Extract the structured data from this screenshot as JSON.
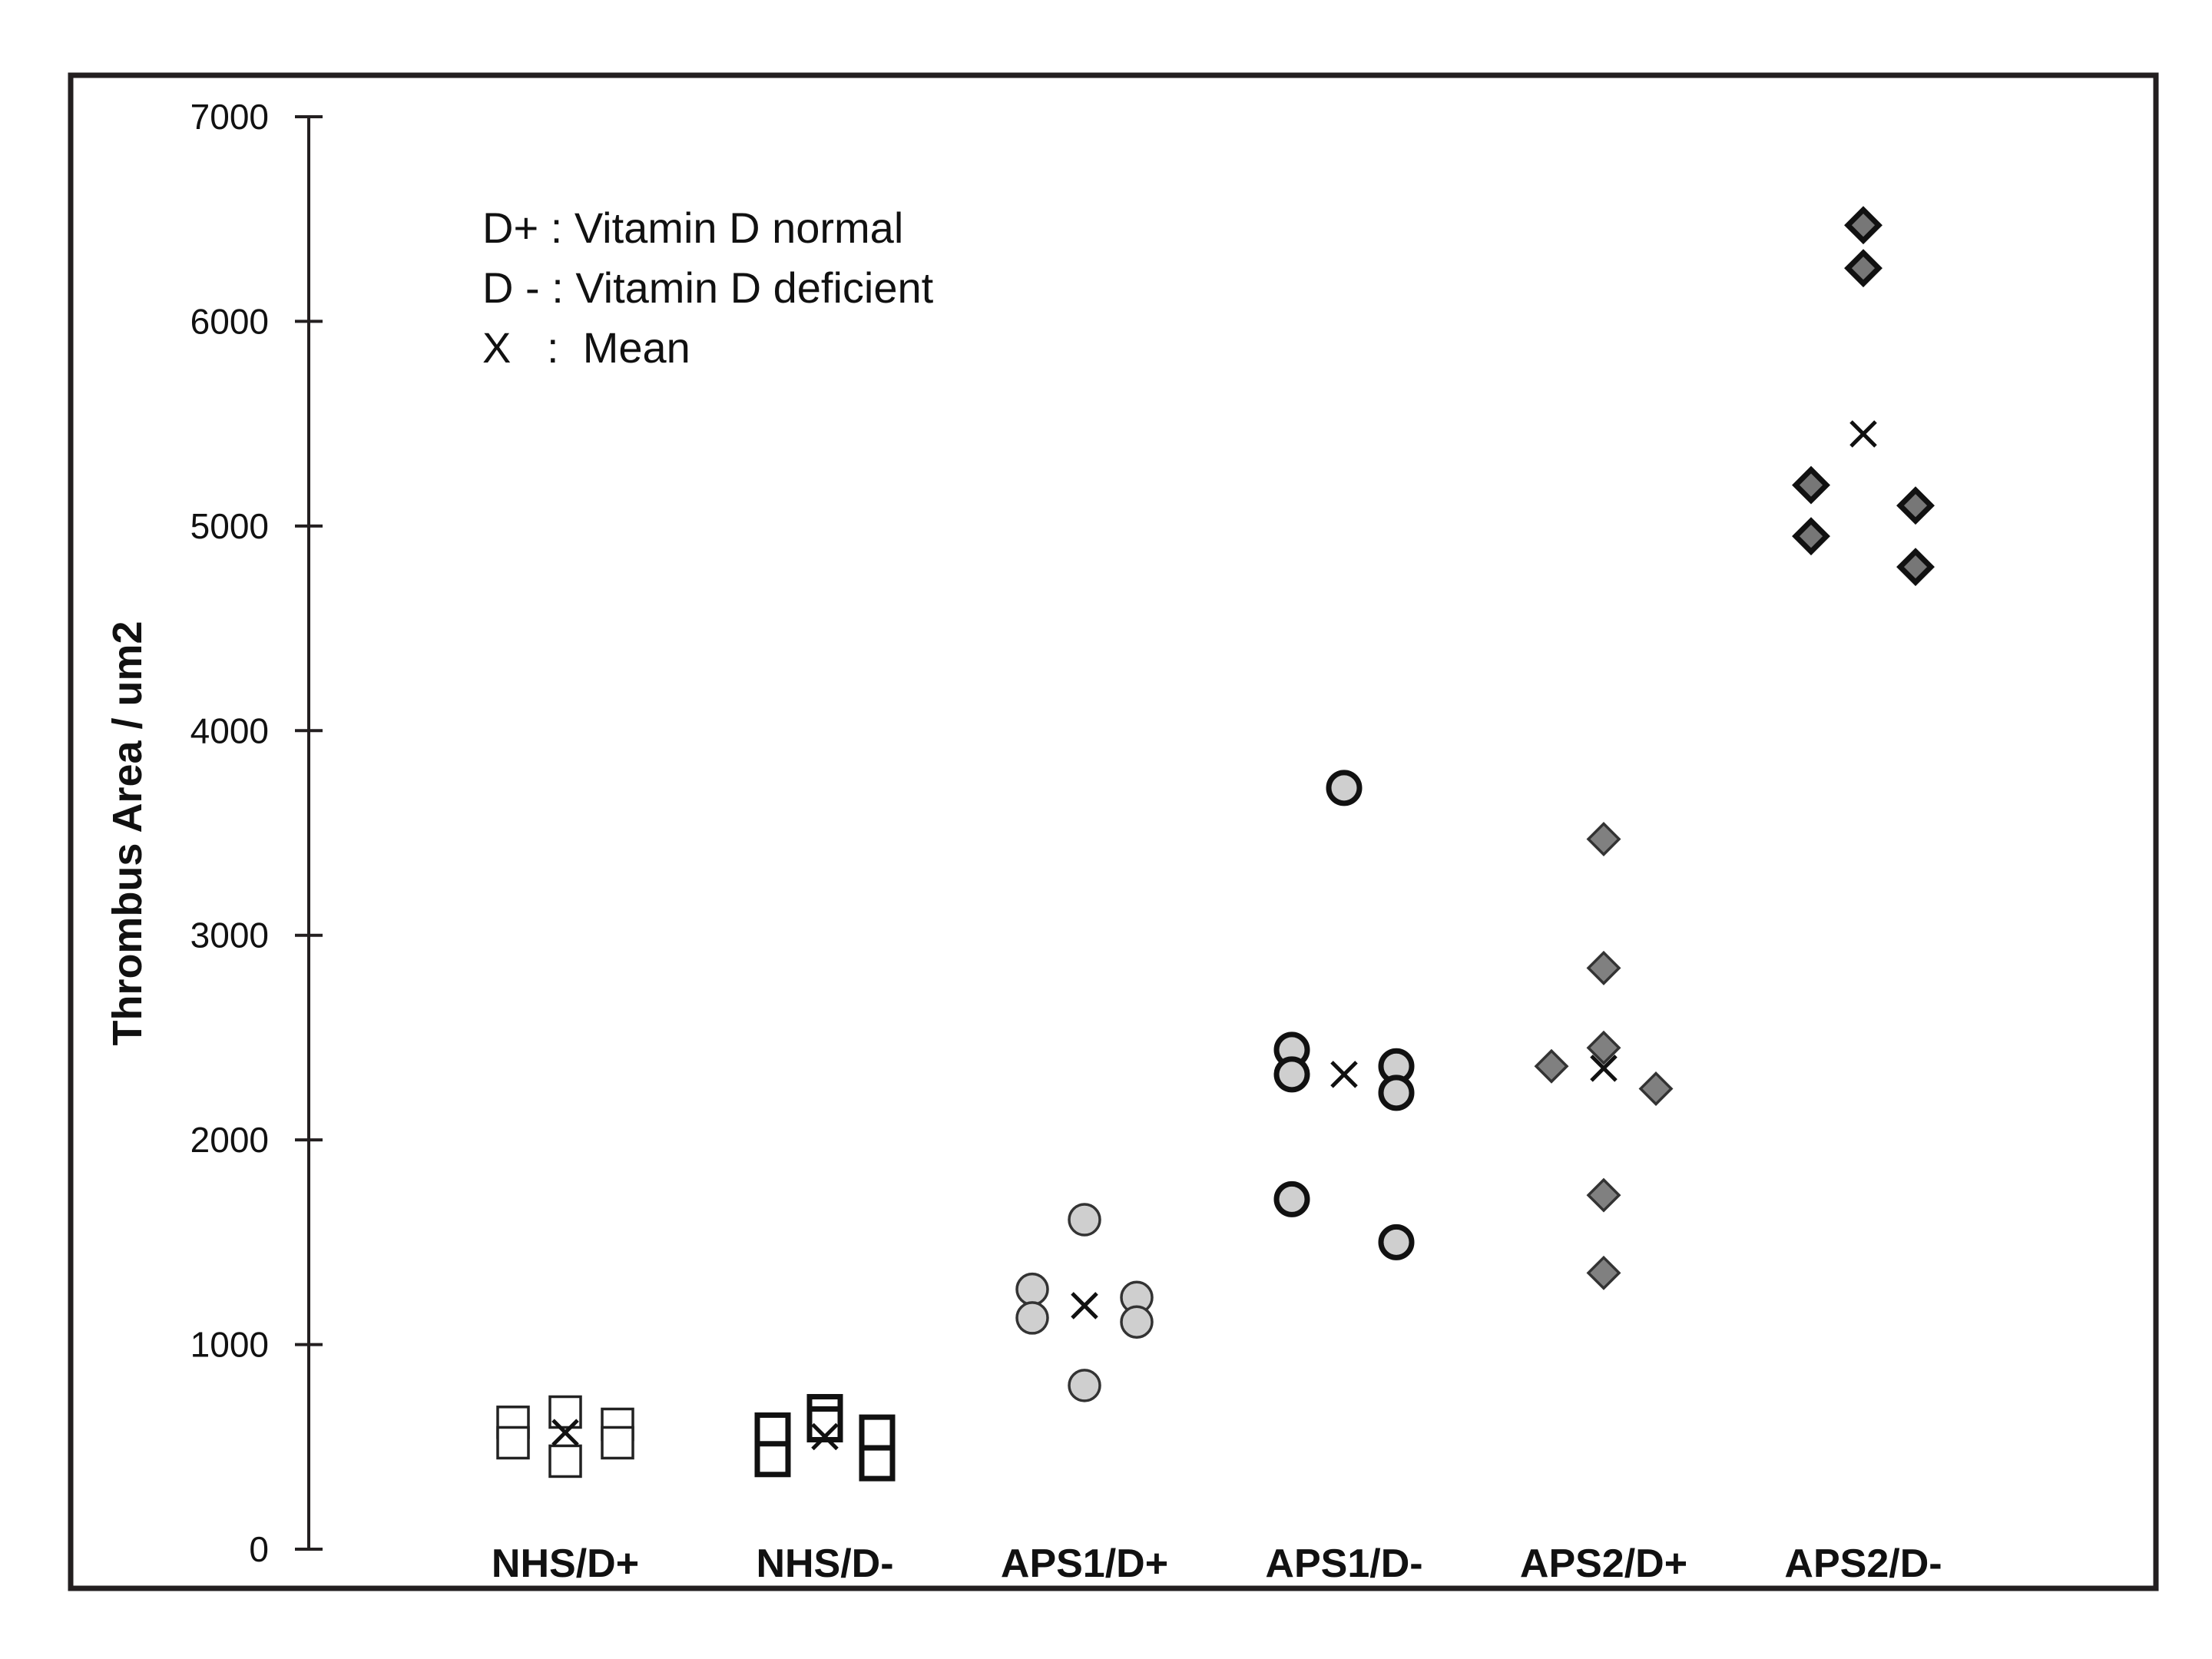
{
  "chart_data": {
    "type": "scatter",
    "title": "",
    "xlabel": "",
    "ylabel": "Thrombus Area / um2",
    "ylim": [
      0,
      7000
    ],
    "yticks": [
      0,
      1000,
      2000,
      3000,
      4000,
      5000,
      6000,
      7000
    ],
    "categories": [
      "NHS/D+",
      "NHS/D-",
      "APS1/D+",
      "APS1/D-",
      "APS2/D+",
      "APS2/D-"
    ],
    "legend": [
      "D+ : Vitamin D normal",
      "D - : Vitamin D deficient",
      "X   :  Mean"
    ],
    "series": [
      {
        "name": "NHS/D+",
        "marker": "square",
        "fill": "#ffffff",
        "stroke": "#222222",
        "points": [
          {
            "offset": -1,
            "value": 620
          },
          {
            "offset": -1,
            "value": 520
          },
          {
            "offset": 0,
            "value": 670
          },
          {
            "offset": 0,
            "value": 430
          },
          {
            "offset": 1,
            "value": 610
          },
          {
            "offset": 1,
            "value": 520
          }
        ],
        "mean": 570
      },
      {
        "name": "NHS/D-",
        "marker": "square",
        "fill": "#ffffff",
        "stroke": "#111111",
        "points": [
          {
            "offset": -1,
            "value": 580
          },
          {
            "offset": -1,
            "value": 440
          },
          {
            "offset": 0,
            "value": 670
          },
          {
            "offset": 0,
            "value": 610
          },
          {
            "offset": 1,
            "value": 570
          },
          {
            "offset": 1,
            "value": 420
          }
        ],
        "mean": 550
      },
      {
        "name": "APS1/D+",
        "marker": "circle",
        "fill": "#cfcfcf",
        "stroke": "#333333",
        "points": [
          {
            "offset": 0,
            "value": 1610
          },
          {
            "offset": -1,
            "value": 1270
          },
          {
            "offset": -1,
            "value": 1130
          },
          {
            "offset": 1,
            "value": 1230
          },
          {
            "offset": 1,
            "value": 1110
          },
          {
            "offset": 0,
            "value": 800
          }
        ],
        "mean": 1190
      },
      {
        "name": "APS1/D-",
        "marker": "circle",
        "fill": "#cfcfcf",
        "stroke": "#111111",
        "points": [
          {
            "offset": 0,
            "value": 3720
          },
          {
            "offset": -1,
            "value": 2440
          },
          {
            "offset": -1,
            "value": 2320
          },
          {
            "offset": 1,
            "value": 2360
          },
          {
            "offset": 1,
            "value": 2230
          },
          {
            "offset": -1,
            "value": 1710
          },
          {
            "offset": 1,
            "value": 1500
          }
        ],
        "mean": 2320
      },
      {
        "name": "APS2/D+",
        "marker": "diamond",
        "fill": "#808080",
        "stroke": "#333333",
        "points": [
          {
            "offset": 0,
            "value": 3470
          },
          {
            "offset": 0,
            "value": 2840
          },
          {
            "offset": 0,
            "value": 2450
          },
          {
            "offset": -1,
            "value": 2360
          },
          {
            "offset": 1,
            "value": 2250
          },
          {
            "offset": 0,
            "value": 1730
          },
          {
            "offset": 0,
            "value": 1350
          }
        ],
        "mean": 2350
      },
      {
        "name": "APS2/D-",
        "marker": "diamond",
        "fill": "#777777",
        "stroke": "#111111",
        "points": [
          {
            "offset": 0,
            "value": 6470
          },
          {
            "offset": 0,
            "value": 6260
          },
          {
            "offset": -1,
            "value": 5200
          },
          {
            "offset": 1,
            "value": 5100
          },
          {
            "offset": -1,
            "value": 4950
          },
          {
            "offset": 1,
            "value": 4800
          }
        ],
        "mean": 5450
      }
    ]
  }
}
